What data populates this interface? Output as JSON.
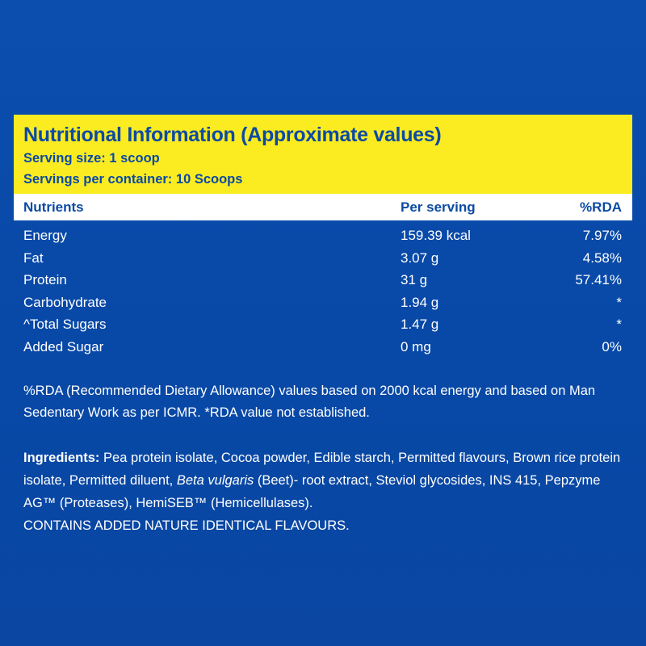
{
  "header": {
    "title": "Nutritional Information (Approximate values)",
    "serving_size": "Serving size: 1 scoop",
    "servings_per_container": "Servings per container: 10 Scoops"
  },
  "columns": {
    "nutrients": "Nutrients",
    "per_serving": "Per serving",
    "rda": "%RDA"
  },
  "rows": [
    {
      "nutrient": "Energy",
      "per_serving": "159.39 kcal",
      "rda": "7.97%"
    },
    {
      "nutrient": "Fat",
      "per_serving": "3.07 g",
      "rda": "4.58%"
    },
    {
      "nutrient": "Protein",
      "per_serving": "31 g",
      "rda": "57.41%"
    },
    {
      "nutrient": "Carbohydrate",
      "per_serving": "1.94 g",
      "rda": "*"
    },
    {
      "nutrient": "^Total Sugars",
      "per_serving": "1.47 g",
      "rda": "*"
    },
    {
      "nutrient": "Added Sugar",
      "per_serving": "0 mg",
      "rda": "0%"
    }
  ],
  "note": "%RDA (Recommended Dietary Allowance) values based on 2000 kcal energy and based on Man Sedentary Work as per ICMR. *RDA value not established.",
  "ingredients": {
    "label": "Ingredients:",
    "text_before": " Pea protein isolate, Cocoa powder, Edible starch, Permitted flavours,  Brown rice protein isolate, Permitted diluent, ",
    "italic": "Beta vulgaris",
    "text_after": " (Beet)- root extract,  Steviol glycosides, INS 415, Pepzyme AG™ (Proteases), HemiSEB™ (Hemicellulases).",
    "contains": "CONTAINS ADDED NATURE IDENTICAL FLAVOURS."
  },
  "colors": {
    "background": "#0b4eae",
    "header_yellow": "#fbec22",
    "header_text": "#0c4aa3"
  }
}
